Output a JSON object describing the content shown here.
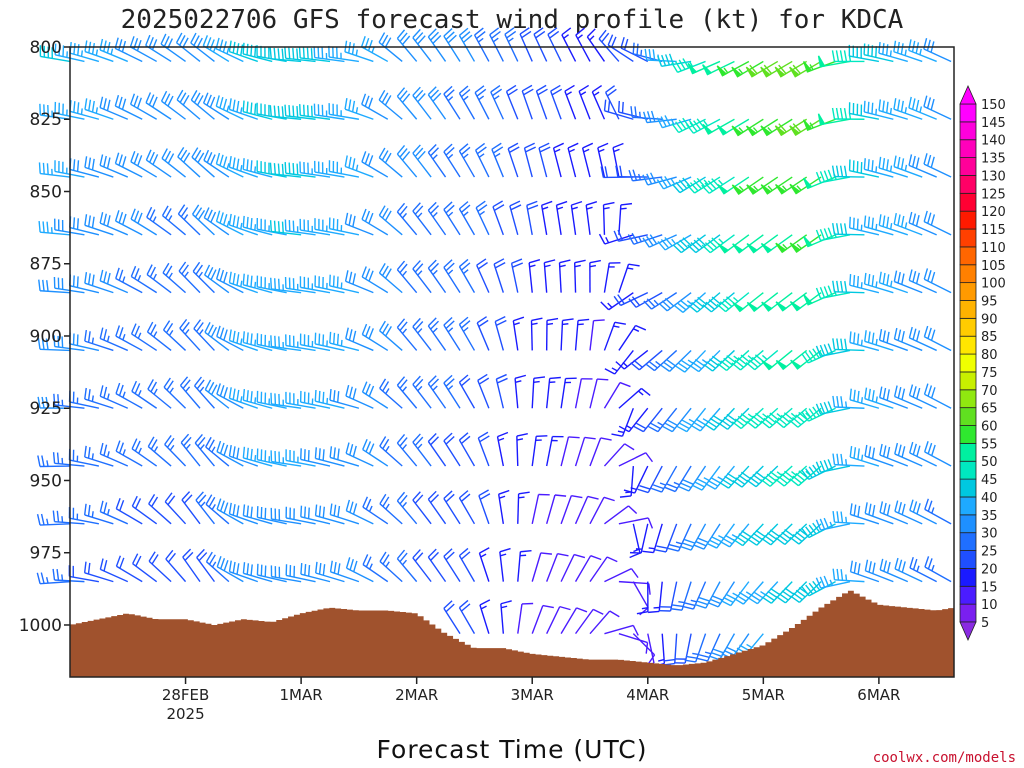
{
  "title": "2025022706 GFS forecast wind profile (kt) for KDCA",
  "credit": "coolwx.com/models",
  "chart_data": {
    "type": "wind-barb-profile",
    "xlabel": "Forecast Time (UTC)",
    "ylabel": "",
    "y_levels_hpa": [
      800,
      825,
      850,
      875,
      900,
      925,
      950,
      975,
      1000
    ],
    "ylim": [
      1018,
      800
    ],
    "x_ticks": [
      {
        "label": "28FEB",
        "sub": "2025",
        "day": 1.0
      },
      {
        "label": "1MAR",
        "sub": "",
        "day": 2.0
      },
      {
        "label": "2MAR",
        "sub": "",
        "day": 3.0
      },
      {
        "label": "3MAR",
        "sub": "",
        "day": 4.0
      },
      {
        "label": "4MAR",
        "sub": "",
        "day": 5.0
      },
      {
        "label": "5MAR",
        "sub": "",
        "day": 6.0
      },
      {
        "label": "6MAR",
        "sub": "",
        "day": 7.0
      }
    ],
    "xlim_days": [
      0.0,
      7.65
    ],
    "surface_pressure_hpa": {
      "times_days": [
        0.0,
        0.25,
        0.5,
        0.75,
        1.0,
        1.25,
        1.5,
        1.75,
        2.0,
        2.25,
        2.5,
        2.75,
        3.0,
        3.25,
        3.5,
        3.75,
        4.0,
        4.25,
        4.5,
        4.75,
        5.0,
        5.25,
        5.5,
        5.75,
        6.0,
        6.25,
        6.5,
        6.75,
        7.0,
        7.25,
        7.5,
        7.65
      ],
      "values": [
        1000,
        998,
        996,
        998,
        998,
        1000,
        998,
        999,
        996,
        994,
        995,
        995,
        996,
        1003,
        1008,
        1008,
        1010,
        1011,
        1012,
        1012,
        1013,
        1014,
        1013,
        1010,
        1007,
        1001,
        994,
        988,
        993,
        994,
        995,
        994
      ]
    },
    "barb_levels_hpa": [
      805,
      825,
      845,
      865,
      885,
      905,
      925,
      945,
      965,
      985,
      1003
    ],
    "barb_times_days": [
      0.0,
      0.125,
      0.25,
      0.375,
      0.5,
      0.625,
      0.75,
      0.875,
      1.0,
      1.125,
      1.25,
      1.375,
      1.5,
      1.625,
      1.75,
      1.875,
      2.0,
      2.125,
      2.25,
      2.375,
      2.5,
      2.625,
      2.75,
      2.875,
      3.0,
      3.125,
      3.25,
      3.375,
      3.5,
      3.625,
      3.75,
      3.875,
      4.0,
      4.125,
      4.25,
      4.375,
      4.5,
      4.625,
      4.75,
      4.875,
      5.0,
      5.125,
      5.25,
      5.375,
      5.5,
      5.625,
      5.75,
      5.875,
      6.0,
      6.125,
      6.25,
      6.375,
      6.5,
      6.625,
      6.75,
      6.875,
      7.0,
      7.125,
      7.25,
      7.375,
      7.5,
      7.625
    ],
    "wind_keyframes": [
      {
        "day": 0.0,
        "dir_top": 280,
        "dir_bot": 265,
        "spd_top": 38,
        "spd_bot": 22
      },
      {
        "day": 0.6,
        "dir_top": 295,
        "dir_bot": 300,
        "spd_top": 32,
        "spd_bot": 20
      },
      {
        "day": 1.2,
        "dir_top": 310,
        "dir_bot": 330,
        "spd_top": 30,
        "spd_bot": 20
      },
      {
        "day": 1.6,
        "dir_top": 290,
        "dir_bot": 290,
        "spd_top": 38,
        "spd_bot": 30
      },
      {
        "day": 2.0,
        "dir_top": 275,
        "dir_bot": 280,
        "spd_top": 42,
        "spd_bot": 30
      },
      {
        "day": 2.5,
        "dir_top": 278,
        "dir_bot": 290,
        "spd_top": 36,
        "spd_bot": 30
      },
      {
        "day": 3.0,
        "dir_top": 320,
        "dir_bot": 320,
        "spd_top": 30,
        "spd_bot": 22
      },
      {
        "day": 3.5,
        "dir_top": 330,
        "dir_bot": 330,
        "spd_top": 28,
        "spd_bot": 18
      },
      {
        "day": 4.0,
        "dir_top": 335,
        "dir_bot": 20,
        "spd_top": 22,
        "spd_bot": 10
      },
      {
        "day": 4.5,
        "dir_top": 330,
        "dir_bot": 40,
        "spd_top": 16,
        "spd_bot": 8
      },
      {
        "day": 5.0,
        "dir_top": 300,
        "dir_bot": 170,
        "spd_top": 22,
        "spd_bot": 12
      },
      {
        "day": 5.5,
        "dir_top": 250,
        "dir_bot": 200,
        "spd_top": 45,
        "spd_bot": 25
      },
      {
        "day": 6.0,
        "dir_top": 240,
        "dir_bot": 220,
        "spd_top": 58,
        "spd_bot": 35
      },
      {
        "day": 6.5,
        "dir_top": 240,
        "dir_bot": 225,
        "spd_top": 62,
        "spd_bot": 38
      },
      {
        "day": 7.0,
        "dir_top": 280,
        "dir_bot": 290,
        "spd_top": 40,
        "spd_bot": 30
      },
      {
        "day": 7.65,
        "dir_top": 295,
        "dir_bot": 300,
        "spd_top": 32,
        "spd_bot": 26
      }
    ],
    "colorbar": {
      "levels_kt": [
        5,
        10,
        15,
        20,
        25,
        30,
        35,
        40,
        45,
        50,
        55,
        60,
        65,
        70,
        75,
        80,
        85,
        90,
        95,
        100,
        105,
        110,
        115,
        120,
        125,
        130,
        135,
        140,
        145,
        150
      ],
      "colors": [
        "#8a2be2",
        "#7a1ff0",
        "#4b1cff",
        "#1a1aff",
        "#1f4fff",
        "#1f6fff",
        "#1e90ff",
        "#1eaaff",
        "#00c8e0",
        "#00e8c0",
        "#00f0a0",
        "#2fe82f",
        "#60e020",
        "#90e810",
        "#c8f000",
        "#f0ff00",
        "#ffe600",
        "#ffcc00",
        "#ffb300",
        "#ff9a00",
        "#ff8000",
        "#ff6600",
        "#ff4000",
        "#ff1a00",
        "#ff0033",
        "#ff0066",
        "#ff0099",
        "#ff00bb",
        "#ff00dd",
        "#ff00ff"
      ]
    },
    "surface_fill_color": "#a0522d"
  }
}
